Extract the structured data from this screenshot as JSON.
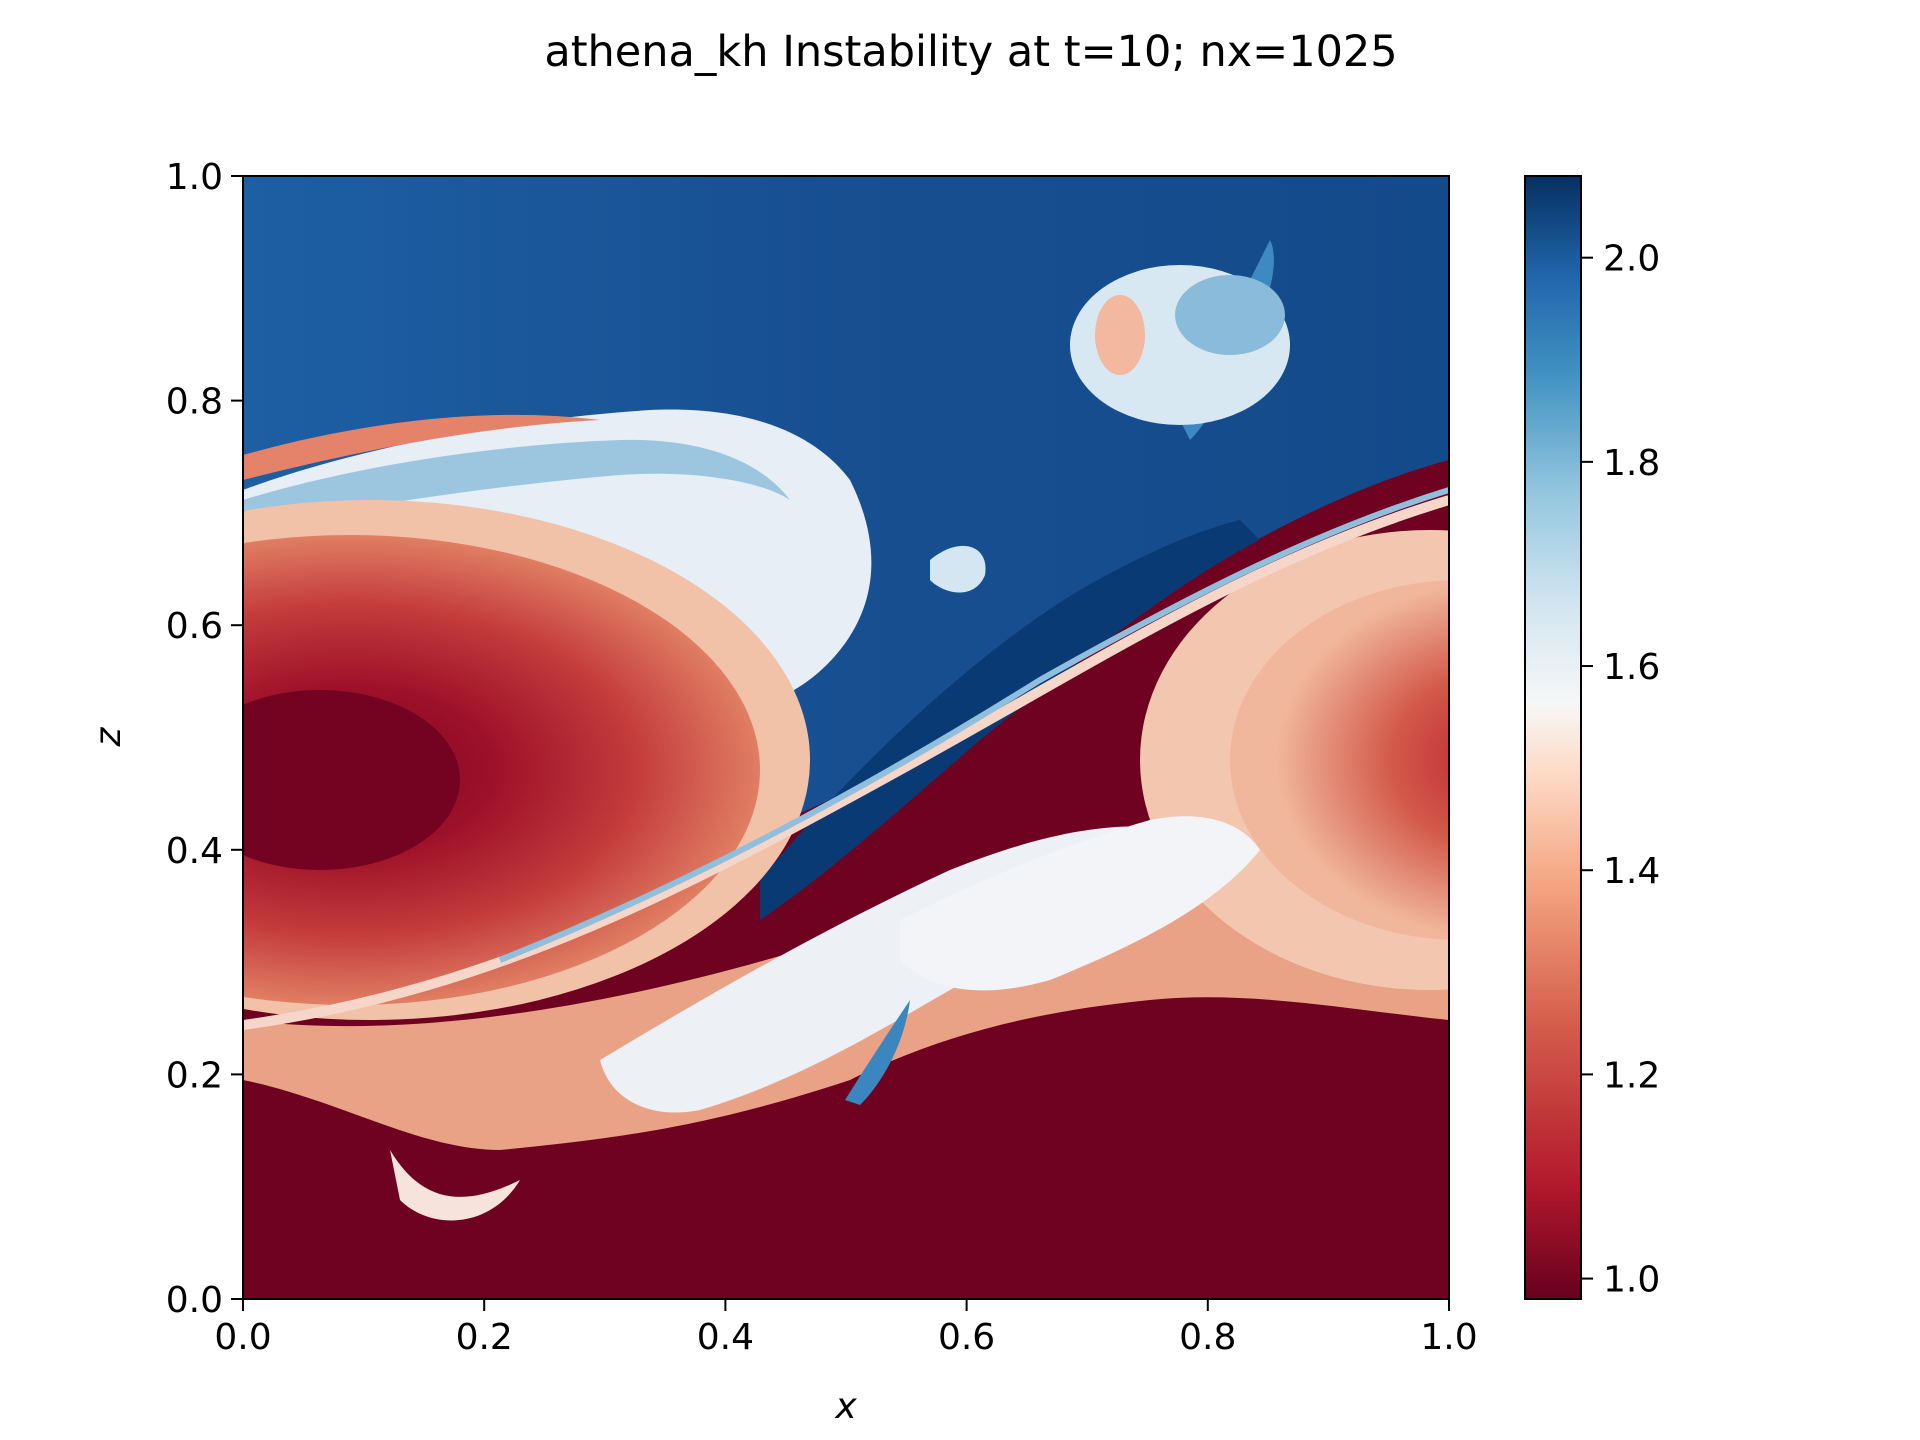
{
  "chart_data": {
    "type": "heatmap",
    "title": "athena_kh Instability at t=10; nx=1025",
    "xlabel": "x",
    "ylabel": "z",
    "xlim": [
      0.0,
      1.0
    ],
    "ylim": [
      0.0,
      1.0
    ],
    "x_ticks": [
      "0.0",
      "0.2",
      "0.4",
      "0.6",
      "0.8",
      "1.0"
    ],
    "y_ticks": [
      "0.0",
      "0.2",
      "0.4",
      "0.6",
      "0.8",
      "1.0"
    ],
    "colorbar": {
      "colormap": "RdBu",
      "range": [
        0.98,
        2.08
      ],
      "ticks": [
        "1.0",
        "1.2",
        "1.4",
        "1.6",
        "1.8",
        "2.0"
      ],
      "tick_values": [
        1.0,
        1.2,
        1.4,
        1.6,
        1.8,
        2.0
      ]
    },
    "field_description": "density-like scalar; low (~1.0) dense red region below a sheared interface rolled into vortices at x≈0.1 and x≈0.95 near z≈0.45; high (~2.0) blue region above with a mushroom plume near x≈0.75, z≈0.85",
    "colors": {
      "low": "#67001f",
      "mid_low": "#d6604d",
      "mid": "#f7f7f7",
      "mid_high": "#4393c3",
      "high": "#053061"
    }
  }
}
